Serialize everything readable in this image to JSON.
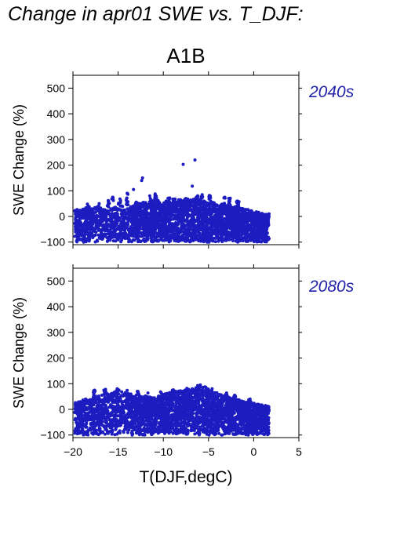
{
  "title": "Change in apr01 SWE vs. T_DJF:",
  "scenario": "A1B",
  "colors": {
    "points": "#1c1cc0",
    "period_text": "#2222aa"
  },
  "chart_data": [
    {
      "type": "scatter",
      "period_label": "2040s",
      "xlabel": "",
      "ylabel": "SWE Change (%)",
      "xlim": [
        -20,
        5
      ],
      "ylim": [
        -110,
        550
      ],
      "x_ticks": [
        -20,
        -15,
        -10,
        -5,
        0,
        5
      ],
      "y_ticks": [
        -100,
        0,
        100,
        200,
        300,
        400,
        500
      ],
      "x_tick_labels_shown": false,
      "points": [
        [
          -19.6,
          -95
        ],
        [
          -19.2,
          -88
        ],
        [
          -18.8,
          -100
        ],
        [
          -18.2,
          -96
        ],
        [
          -18.9,
          28
        ],
        [
          -18.4,
          35
        ],
        [
          -18.3,
          40
        ],
        [
          -17.9,
          30
        ],
        [
          -17.3,
          38
        ],
        [
          -16.7,
          27
        ],
        [
          -16.3,
          23
        ],
        [
          -15.8,
          30
        ],
        [
          -15.3,
          36
        ],
        [
          -14.6,
          41
        ],
        [
          -14.3,
          25
        ],
        [
          -13.8,
          30
        ],
        [
          -13.6,
          38
        ],
        [
          -13.2,
          42
        ],
        [
          -13.0,
          56
        ],
        [
          -12.6,
          50
        ],
        [
          -12.2,
          55
        ],
        [
          -11.6,
          47
        ],
        [
          -11.1,
          58
        ],
        [
          -10.6,
          62
        ],
        [
          -10.2,
          45
        ],
        [
          -9.7,
          60
        ],
        [
          -9.2,
          52
        ],
        [
          -8.6,
          56
        ],
        [
          -8.3,
          65
        ],
        [
          -7.8,
          61
        ],
        [
          -7.5,
          70
        ],
        [
          -7.0,
          64
        ],
        [
          -6.5,
          68
        ],
        [
          -6.1,
          57
        ],
        [
          -5.5,
          60
        ],
        [
          -5.1,
          52
        ],
        [
          -4.6,
          55
        ],
        [
          -4.1,
          45
        ],
        [
          -3.5,
          48
        ],
        [
          -3.0,
          42
        ],
        [
          -2.5,
          35
        ],
        [
          -2.0,
          38
        ],
        [
          -1.4,
          31
        ],
        [
          -0.9,
          27
        ],
        [
          -0.3,
          22
        ],
        [
          0.3,
          18
        ],
        [
          0.9,
          12
        ],
        [
          1.4,
          8
        ],
        [
          1.7,
          10
        ],
        [
          -14.0,
          90
        ],
        [
          -13.3,
          105
        ],
        [
          -12.4,
          140
        ],
        [
          -12.3,
          150
        ],
        [
          -11.5,
          80
        ],
        [
          -10.9,
          88
        ],
        [
          -9.3,
          72
        ],
        [
          -8.7,
          68
        ],
        [
          -7.8,
          203
        ],
        [
          -6.5,
          220
        ],
        [
          -6.8,
          118
        ],
        [
          -6.2,
          80
        ],
        [
          -5.7,
          85
        ],
        [
          -4.9,
          82
        ],
        [
          -3.2,
          75
        ],
        [
          -2.6,
          71
        ],
        [
          -1.8,
          60
        ],
        [
          -15.6,
          75
        ],
        [
          -14.8,
          68
        ],
        [
          -16.1,
          62
        ],
        [
          -17.1,
          50
        ],
        [
          -18.4,
          48
        ]
      ]
    },
    {
      "type": "scatter",
      "period_label": "2080s",
      "xlabel": "T(DJF,degC)",
      "ylabel": "SWE Change (%)",
      "xlim": [
        -20,
        5
      ],
      "ylim": [
        -110,
        550
      ],
      "x_ticks": [
        -20,
        -15,
        -10,
        -5,
        0,
        5
      ],
      "x_tick_labels": [
        "−20",
        "−15",
        "−10",
        "−5",
        "0",
        "5"
      ],
      "y_ticks": [
        -100,
        0,
        100,
        200,
        300,
        400,
        500
      ],
      "x_tick_labels_shown": true,
      "points": [
        [
          -19.5,
          -95
        ],
        [
          -19.0,
          -88
        ],
        [
          -18.5,
          -98
        ],
        [
          -17.8,
          -92
        ],
        [
          -17.0,
          -86
        ],
        [
          -19.2,
          30
        ],
        [
          -18.6,
          40
        ],
        [
          -18.1,
          38
        ],
        [
          -17.5,
          52
        ],
        [
          -16.8,
          55
        ],
        [
          -16.2,
          60
        ],
        [
          -15.7,
          62
        ],
        [
          -15.2,
          72
        ],
        [
          -14.6,
          68
        ],
        [
          -14.2,
          65
        ],
        [
          -13.6,
          60
        ],
        [
          -13.0,
          55
        ],
        [
          -12.5,
          50
        ],
        [
          -12.0,
          52
        ],
        [
          -11.5,
          48
        ],
        [
          -11.0,
          45
        ],
        [
          -10.5,
          52
        ],
        [
          -10.0,
          58
        ],
        [
          -9.6,
          62
        ],
        [
          -9.1,
          66
        ],
        [
          -8.6,
          70
        ],
        [
          -8.1,
          72
        ],
        [
          -7.6,
          75
        ],
        [
          -7.2,
          78
        ],
        [
          -6.8,
          80
        ],
        [
          -6.4,
          84
        ],
        [
          -6.0,
          90
        ],
        [
          -5.6,
          86
        ],
        [
          -5.2,
          80
        ],
        [
          -4.8,
          72
        ],
        [
          -4.3,
          65
        ],
        [
          -3.8,
          58
        ],
        [
          -3.3,
          52
        ],
        [
          -2.8,
          48
        ],
        [
          -2.3,
          42
        ],
        [
          -1.8,
          38
        ],
        [
          -1.3,
          32
        ],
        [
          -0.7,
          28
        ],
        [
          -0.2,
          24
        ],
        [
          0.4,
          20
        ],
        [
          0.9,
          17
        ],
        [
          1.3,
          15
        ],
        [
          1.6,
          12
        ],
        [
          -17.6,
          75
        ],
        [
          -16.4,
          78
        ],
        [
          -15.1,
          80
        ],
        [
          -14.0,
          74
        ],
        [
          -11.7,
          64
        ],
        [
          -10.3,
          68
        ],
        [
          -8.9,
          76
        ],
        [
          -7.4,
          82
        ],
        [
          -6.2,
          93
        ],
        [
          -5.9,
          95
        ],
        [
          -5.4,
          88
        ],
        [
          -4.6,
          80
        ],
        [
          -2.1,
          55
        ],
        [
          -0.4,
          40
        ],
        [
          -3.0,
          64
        ],
        [
          -12.8,
          70
        ]
      ]
    }
  ]
}
